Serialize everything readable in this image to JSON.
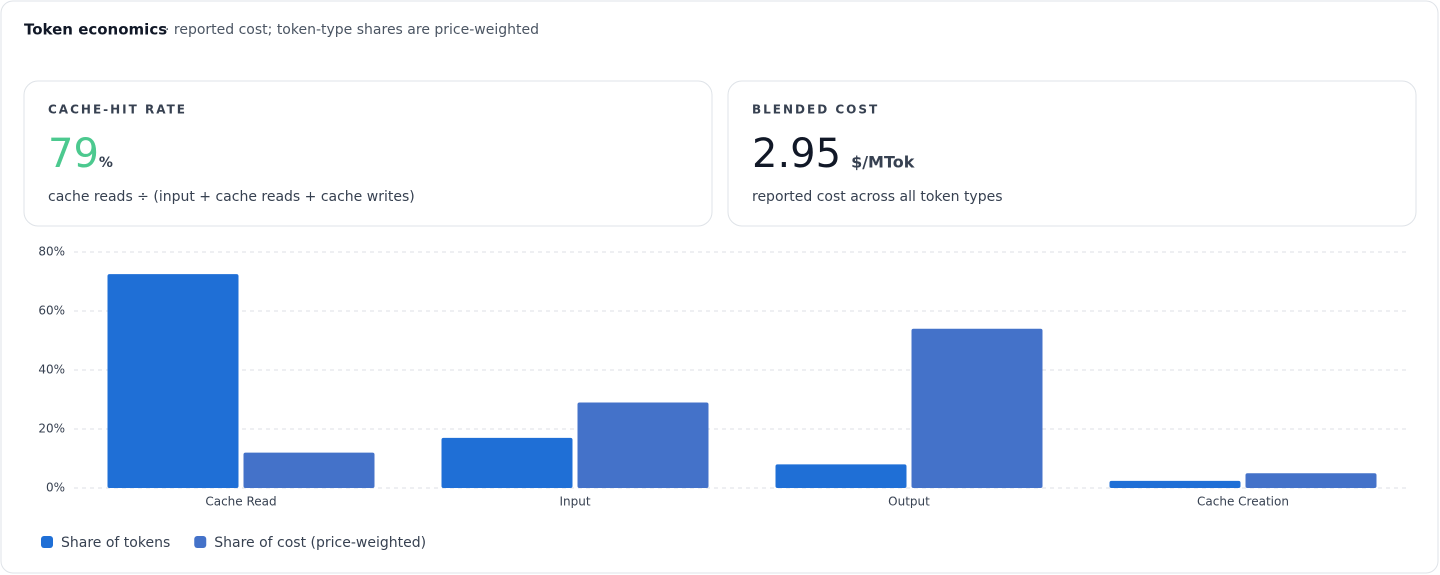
{
  "header": {
    "title": "Token economics",
    "subtitle": "· reported cost; token-type shares are price-weighted"
  },
  "kpis": [
    {
      "label": "CACHE-HIT RATE",
      "value": 79,
      "unit": "%",
      "description": "cache reads ÷ (input + cache reads + cache writes)",
      "color": "#4cc98f"
    },
    {
      "label": "BLENDED COST",
      "value": 2.95,
      "unit": "$/MTok",
      "description": "reported cost across all token types",
      "color": "#111827"
    }
  ],
  "chart_data": {
    "type": "bar",
    "categories": [
      "Cache Read",
      "Input",
      "Output",
      "Cache Creation"
    ],
    "series": [
      {
        "name": "Share of tokens",
        "color": "#1f6fd6",
        "values": [
          72.5,
          17,
          8,
          2.4
        ]
      },
      {
        "name": "Share of cost (price-weighted)",
        "color": "#4472c9",
        "values": [
          12,
          29,
          54,
          5
        ]
      }
    ],
    "ylim": [
      0,
      80
    ],
    "yticks": [
      {
        "value": 0,
        "label": "0%"
      },
      {
        "value": 20,
        "label": "20%"
      },
      {
        "value": 40,
        "label": "40%"
      },
      {
        "value": 60,
        "label": "60%"
      },
      {
        "value": 80,
        "label": "80%"
      }
    ],
    "grid": true,
    "legend": "bottom-left"
  }
}
